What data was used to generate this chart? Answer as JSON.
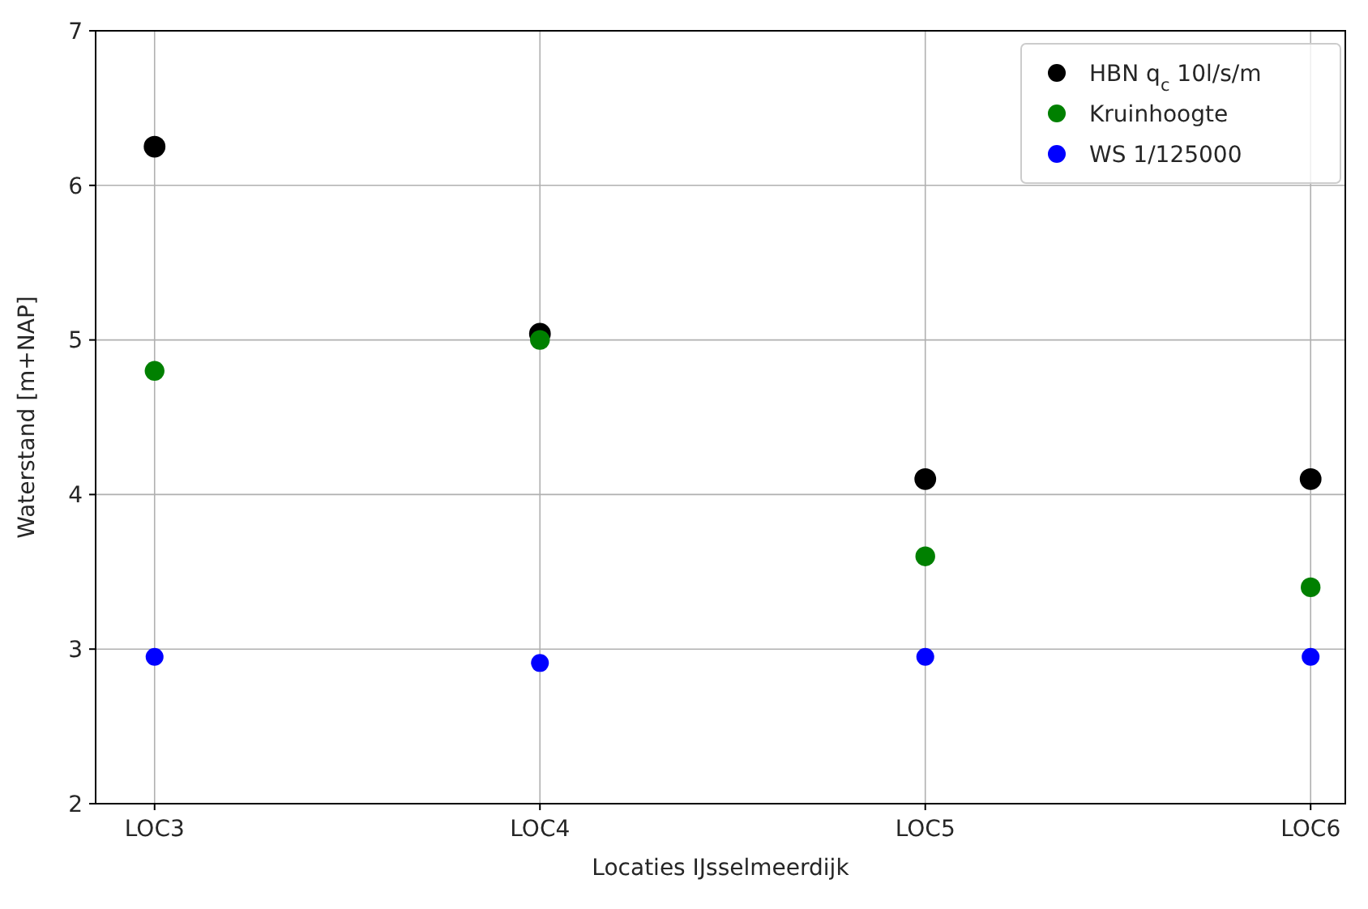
{
  "chart_data": {
    "type": "scatter",
    "xlabel": "Locaties IJsselmeerdijk",
    "ylabel": "Waterstand [m+NAP]",
    "categories": [
      "LOC3",
      "LOC4",
      "LOC5",
      "LOC6"
    ],
    "series": [
      {
        "name": "HBN q$_{c}$ 10l/s/m",
        "color": "#000000",
        "values": [
          6.25,
          5.04,
          4.1,
          4.1
        ]
      },
      {
        "name": "Kruinhoogte",
        "color": "#008000",
        "values": [
          4.8,
          5.0,
          3.6,
          3.4
        ]
      },
      {
        "name": "WS 1/125000",
        "color": "#0000ff",
        "values": [
          2.95,
          2.91,
          2.95,
          2.95
        ]
      }
    ],
    "ylim": [
      2,
      7
    ],
    "yticks": [
      2,
      3,
      4,
      5,
      6,
      7
    ],
    "grid": true,
    "legend": "top right",
    "marker": "circle"
  }
}
